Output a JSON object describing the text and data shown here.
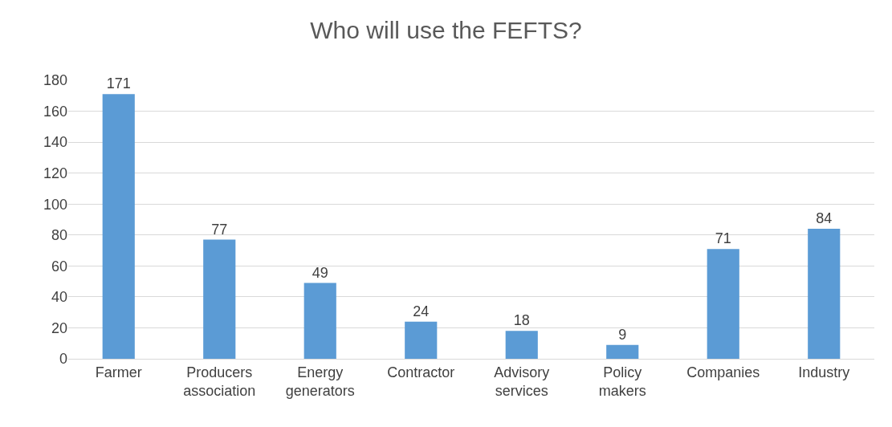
{
  "chart_data": {
    "type": "bar",
    "title": "Who will use the FEFTS?",
    "categories": [
      "Farmer",
      "Producers\nassociation",
      "Energy\ngenerators",
      "Contractor",
      "Advisory\nservices",
      "Policy\nmakers",
      "Companies",
      "Industry"
    ],
    "values": [
      171,
      77,
      49,
      24,
      18,
      9,
      71,
      84
    ],
    "color": "#5b9bd5",
    "ylim": [
      0,
      180
    ],
    "yticks": [
      0,
      20,
      40,
      60,
      80,
      100,
      120,
      140,
      160,
      180
    ],
    "grid": "y",
    "data_labels": true
  }
}
